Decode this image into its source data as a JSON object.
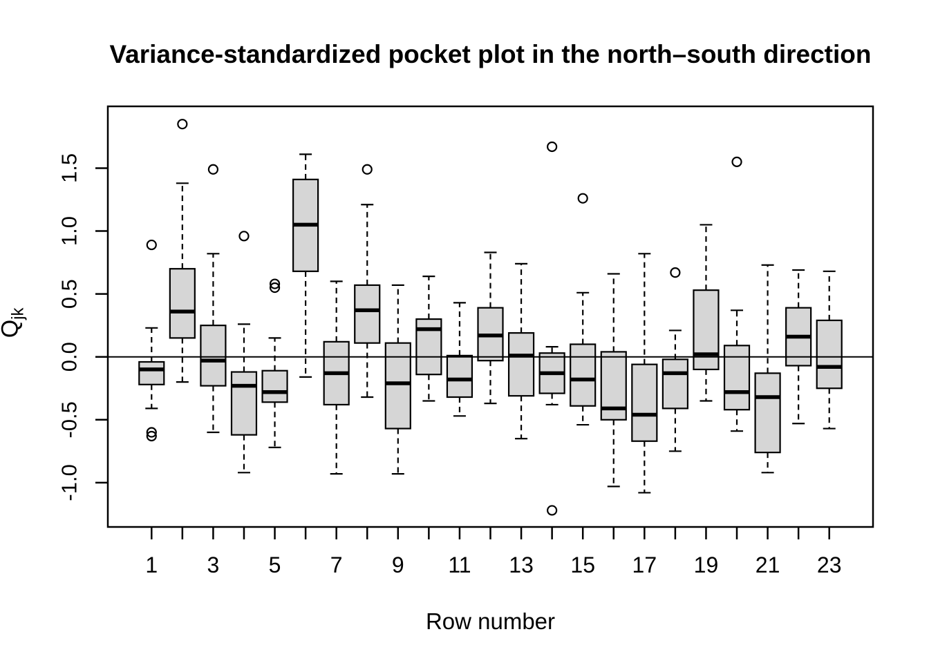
{
  "chart_data": {
    "type": "boxplot",
    "title": "Variance-standardized pocket plot in the north–south direction",
    "xlabel": "Row number",
    "ylabel_main": "Q",
    "ylabel_sub": "jk",
    "legend": "none",
    "grid": false,
    "background": "#ffffff",
    "box_fill": "#d6d6d6",
    "line_color": "#000000",
    "ylim": [
      -1.352,
      1.991
    ],
    "xlim": [
      -0.42,
      24.42
    ],
    "zero_line_y": 0.0,
    "y_ticks": [
      {
        "value": 1.5,
        "label": "1.5"
      },
      {
        "value": 1.0,
        "label": "1.0"
      },
      {
        "value": 0.5,
        "label": "0.5"
      },
      {
        "value": 0.0,
        "label": "0.0"
      },
      {
        "value": -0.5,
        "label": "-0.5"
      },
      {
        "value": -1.0,
        "label": "-1.0"
      }
    ],
    "x_labeled_rows": [
      1,
      3,
      5,
      7,
      9,
      11,
      13,
      15,
      17,
      19,
      21,
      23
    ],
    "boxes": [
      {
        "row": 1,
        "whisker_low": -0.41,
        "q1": -0.22,
        "median": -0.1,
        "q3": -0.04,
        "whisker_high": 0.23,
        "outliers": [
          0.89,
          -0.6,
          -0.63
        ]
      },
      {
        "row": 2,
        "whisker_low": -0.2,
        "q1": 0.15,
        "median": 0.36,
        "q3": 0.7,
        "whisker_high": 1.38,
        "outliers": [
          1.85
        ]
      },
      {
        "row": 3,
        "whisker_low": -0.6,
        "q1": -0.23,
        "median": -0.03,
        "q3": 0.25,
        "whisker_high": 0.82,
        "outliers": [
          1.49
        ]
      },
      {
        "row": 4,
        "whisker_low": -0.92,
        "q1": -0.62,
        "median": -0.23,
        "q3": -0.12,
        "whisker_high": 0.26,
        "outliers": [
          0.96
        ]
      },
      {
        "row": 5,
        "whisker_low": -0.72,
        "q1": -0.36,
        "median": -0.28,
        "q3": -0.11,
        "whisker_high": 0.15,
        "outliers": [
          0.58,
          0.55
        ]
      },
      {
        "row": 6,
        "whisker_low": -0.16,
        "q1": 0.68,
        "median": 1.05,
        "q3": 1.41,
        "whisker_high": 1.61,
        "outliers": []
      },
      {
        "row": 7,
        "whisker_low": -0.93,
        "q1": -0.38,
        "median": -0.13,
        "q3": 0.12,
        "whisker_high": 0.6,
        "outliers": []
      },
      {
        "row": 8,
        "whisker_low": -0.32,
        "q1": 0.11,
        "median": 0.37,
        "q3": 0.57,
        "whisker_high": 1.21,
        "outliers": [
          1.49
        ]
      },
      {
        "row": 9,
        "whisker_low": -0.93,
        "q1": -0.57,
        "median": -0.21,
        "q3": 0.11,
        "whisker_high": 0.57,
        "outliers": []
      },
      {
        "row": 10,
        "whisker_low": -0.35,
        "q1": -0.14,
        "median": 0.22,
        "q3": 0.3,
        "whisker_high": 0.64,
        "outliers": []
      },
      {
        "row": 11,
        "whisker_low": -0.47,
        "q1": -0.32,
        "median": -0.18,
        "q3": 0.01,
        "whisker_high": 0.43,
        "outliers": []
      },
      {
        "row": 12,
        "whisker_low": -0.37,
        "q1": -0.03,
        "median": 0.17,
        "q3": 0.39,
        "whisker_high": 0.83,
        "outliers": []
      },
      {
        "row": 13,
        "whisker_low": -0.65,
        "q1": -0.31,
        "median": 0.01,
        "q3": 0.19,
        "whisker_high": 0.74,
        "outliers": []
      },
      {
        "row": 14,
        "whisker_low": -0.38,
        "q1": -0.29,
        "median": -0.13,
        "q3": 0.03,
        "whisker_high": 0.08,
        "outliers": [
          1.67,
          -1.22
        ]
      },
      {
        "row": 15,
        "whisker_low": -0.54,
        "q1": -0.39,
        "median": -0.18,
        "q3": 0.1,
        "whisker_high": 0.51,
        "outliers": [
          1.26
        ]
      },
      {
        "row": 16,
        "whisker_low": -1.03,
        "q1": -0.5,
        "median": -0.41,
        "q3": 0.04,
        "whisker_high": 0.66,
        "outliers": []
      },
      {
        "row": 17,
        "whisker_low": -1.08,
        "q1": -0.67,
        "median": -0.46,
        "q3": -0.06,
        "whisker_high": 0.82,
        "outliers": []
      },
      {
        "row": 18,
        "whisker_low": -0.75,
        "q1": -0.41,
        "median": -0.13,
        "q3": -0.02,
        "whisker_high": 0.21,
        "outliers": [
          0.67
        ]
      },
      {
        "row": 19,
        "whisker_low": -0.35,
        "q1": -0.1,
        "median": 0.02,
        "q3": 0.53,
        "whisker_high": 1.05,
        "outliers": []
      },
      {
        "row": 20,
        "whisker_low": -0.59,
        "q1": -0.42,
        "median": -0.28,
        "q3": 0.09,
        "whisker_high": 0.37,
        "outliers": [
          1.55
        ]
      },
      {
        "row": 21,
        "whisker_low": -0.92,
        "q1": -0.76,
        "median": -0.32,
        "q3": -0.13,
        "whisker_high": 0.73,
        "outliers": []
      },
      {
        "row": 22,
        "whisker_low": -0.53,
        "q1": -0.07,
        "median": 0.16,
        "q3": 0.39,
        "whisker_high": 0.69,
        "outliers": []
      },
      {
        "row": 23,
        "whisker_low": -0.57,
        "q1": -0.25,
        "median": -0.08,
        "q3": 0.29,
        "whisker_high": 0.68,
        "outliers": []
      }
    ]
  }
}
